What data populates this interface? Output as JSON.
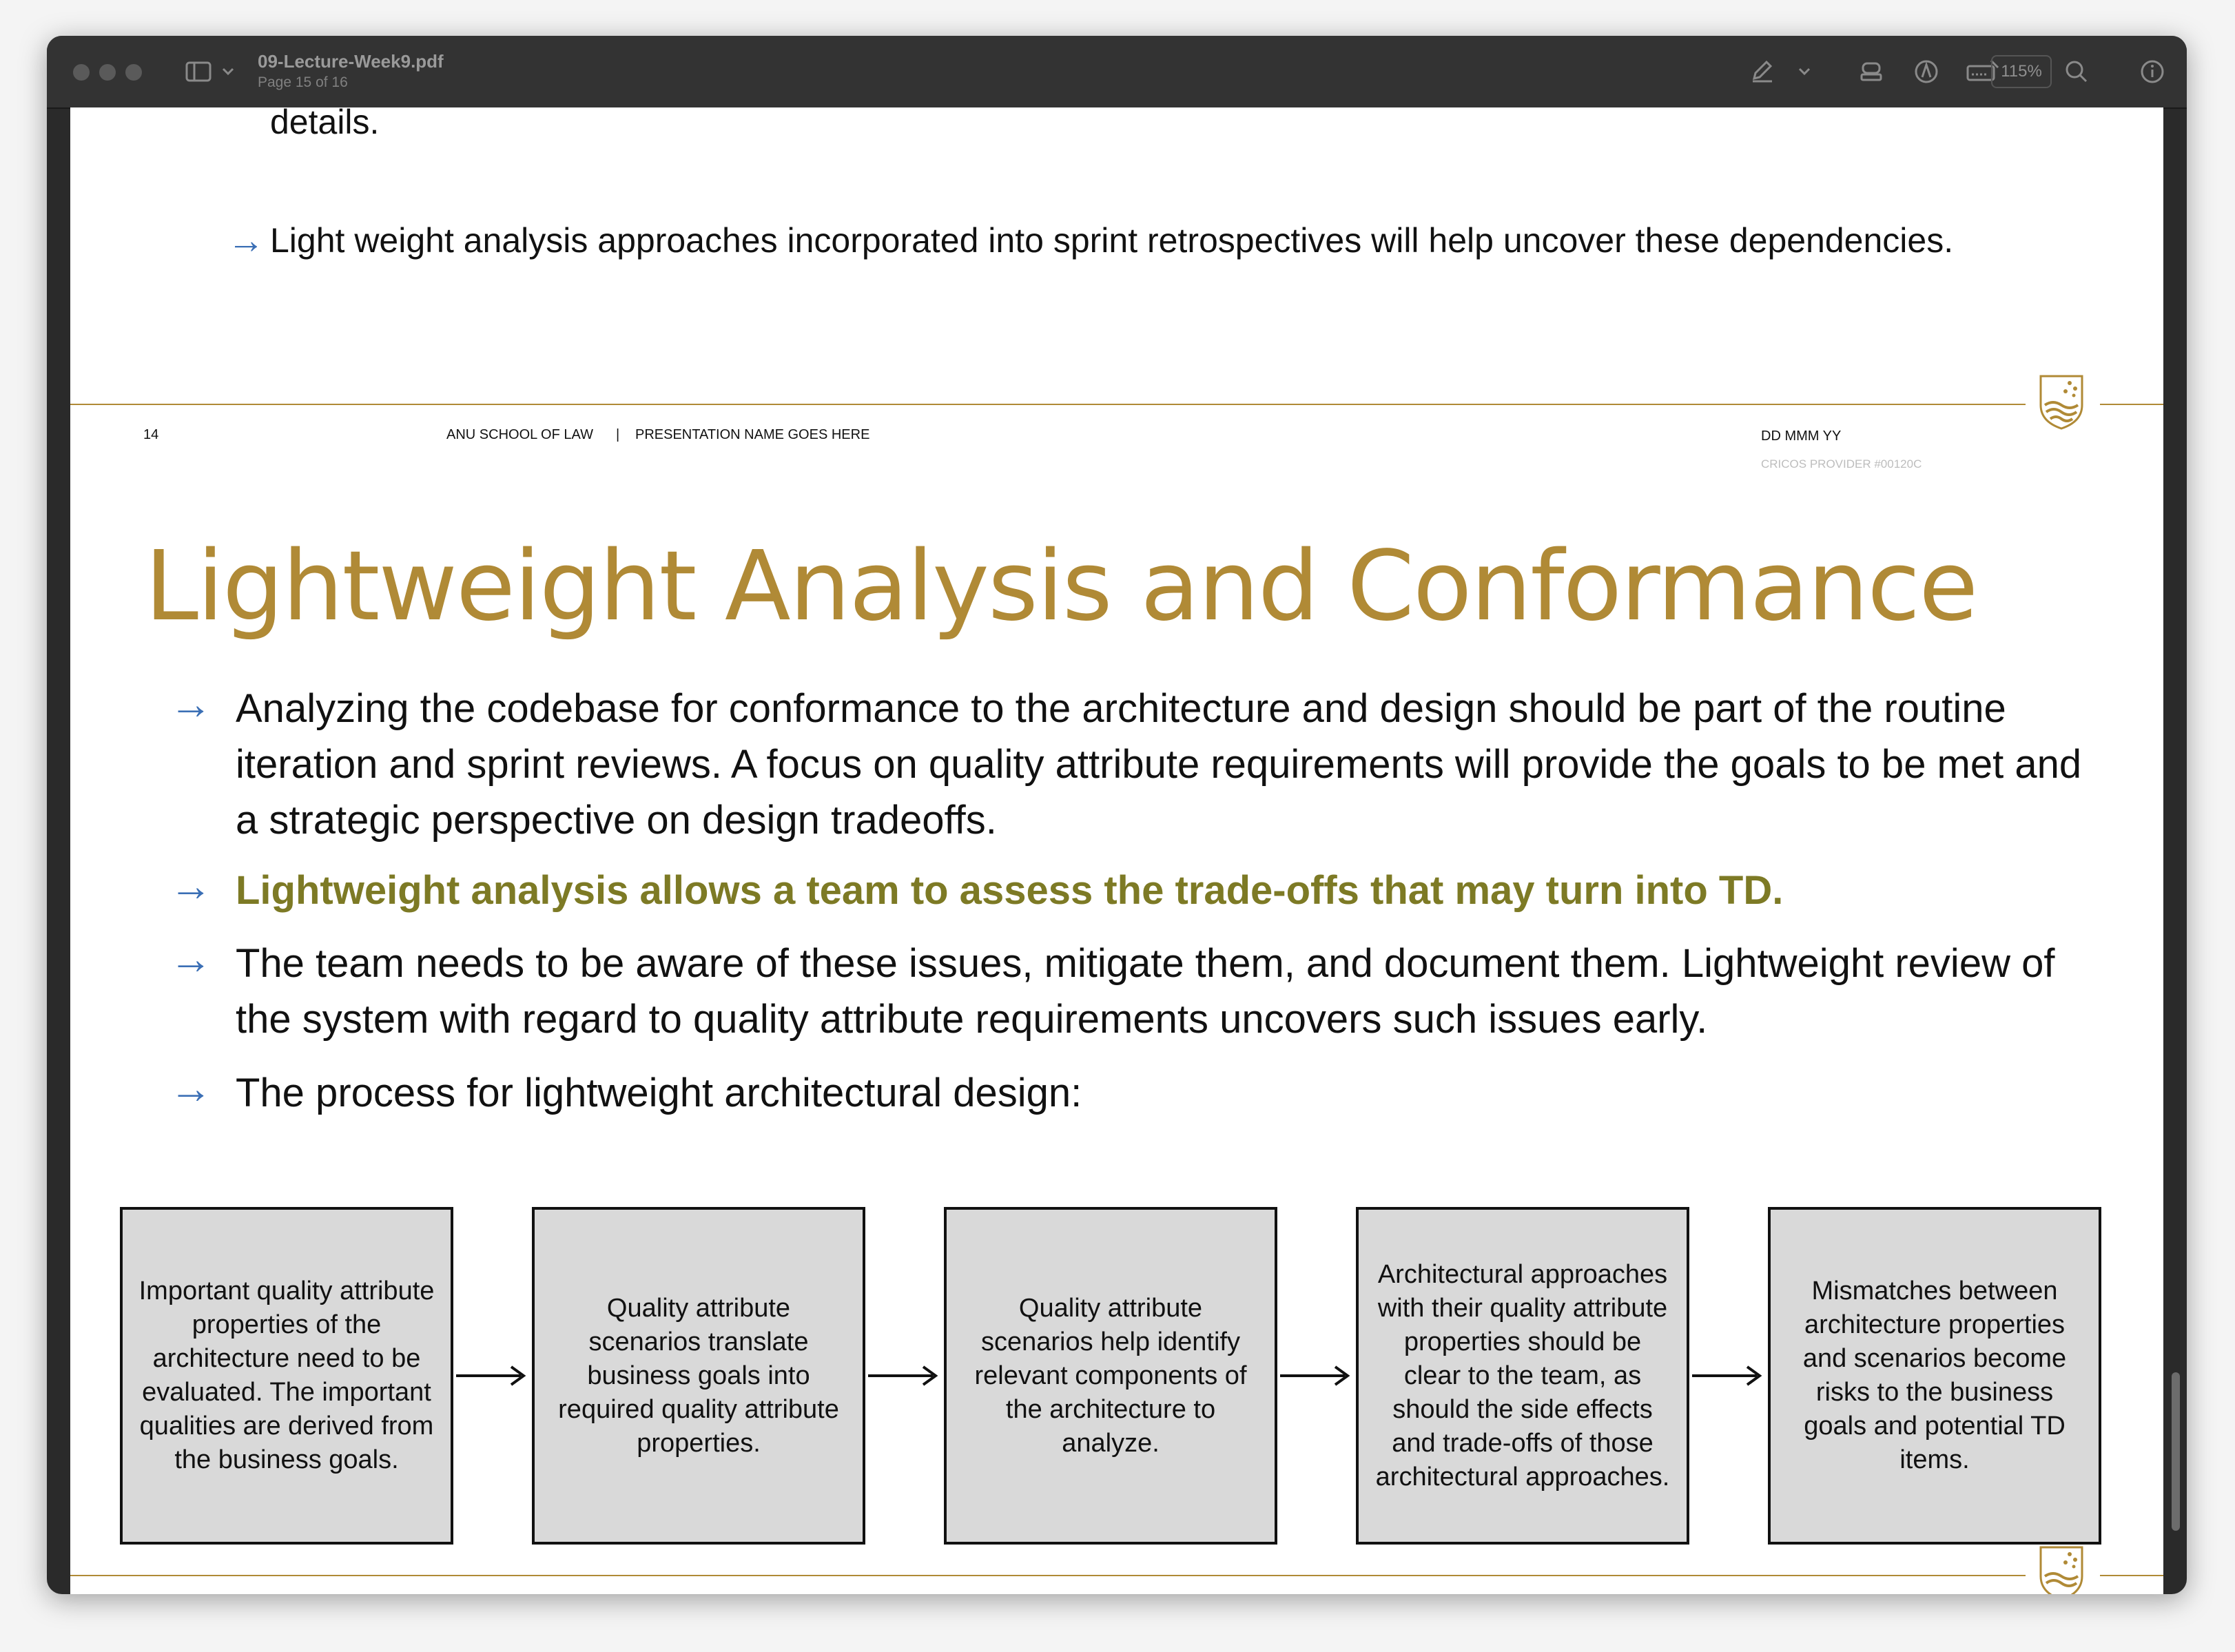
{
  "window": {
    "file_name": "09-Lecture-Week9.pdf",
    "page_indicator": "Page 15 of 16",
    "zoom": "115%"
  },
  "toolbar_icons": [
    "sidebar-toggle-icon",
    "chevron-down-icon",
    "markup-pen-icon",
    "chevron-down-icon",
    "stamp-icon",
    "highlight-icon",
    "form-fill-icon",
    "zoom-icon",
    "info-icon"
  ],
  "previous_page": {
    "bullets": [
      {
        "text": "details."
      },
      {
        "text": "Light weight analysis approaches incorporated into sprint retrospectives will help uncover these dependencies."
      }
    ],
    "footer": {
      "page_number": "14",
      "school": "ANU SCHOOL OF LAW",
      "separator": "|",
      "presentation": "PRESENTATION NAME GOES HERE",
      "date": "DD MMM YY",
      "cricos": "CRICOS PROVIDER #00120C"
    }
  },
  "slide": {
    "title": "Lightweight Analysis and Conformance",
    "bullets": [
      {
        "text": "Analyzing the codebase for conformance to the architecture and design should be part of the routine iteration and sprint reviews. A focus on quality attribute requirements will provide the goals to be met and a strategic perspective on design tradeoffs.",
        "emphasis": false
      },
      {
        "text": "Lightweight analysis allows a team to assess the trade-offs that may turn into TD.",
        "emphasis": true,
        "color": "#7d7a25"
      },
      {
        "text": "The team needs to be aware of these issues, mitigate them, and document them. Lightweight review of the system with regard to quality attribute requirements uncovers such issues early.",
        "emphasis": false
      },
      {
        "text": "The process for lightweight architectural design:",
        "emphasis": false
      }
    ],
    "process_boxes": [
      "Important quality attribute properties of the architecture need to be evaluated. The important qualities are derived from the business goals.",
      "Quality attribute scenarios translate business goals into required quality attribute properties.",
      "Quality attribute scenarios help identify relevant components of the architecture to analyze.",
      "Architectural approaches with their quality attribute properties should be clear to the team, as should the side effects and trade-offs of those architectural approaches.",
      "Mismatches between architecture properties and scenarios become risks to the business goals and potential TD items."
    ]
  },
  "colors": {
    "accent_gold": "#b08a36",
    "bullet_arrow": "#3b6fb5",
    "emphasis_olive": "#7d7a25",
    "box_fill": "#d9d9d9"
  }
}
